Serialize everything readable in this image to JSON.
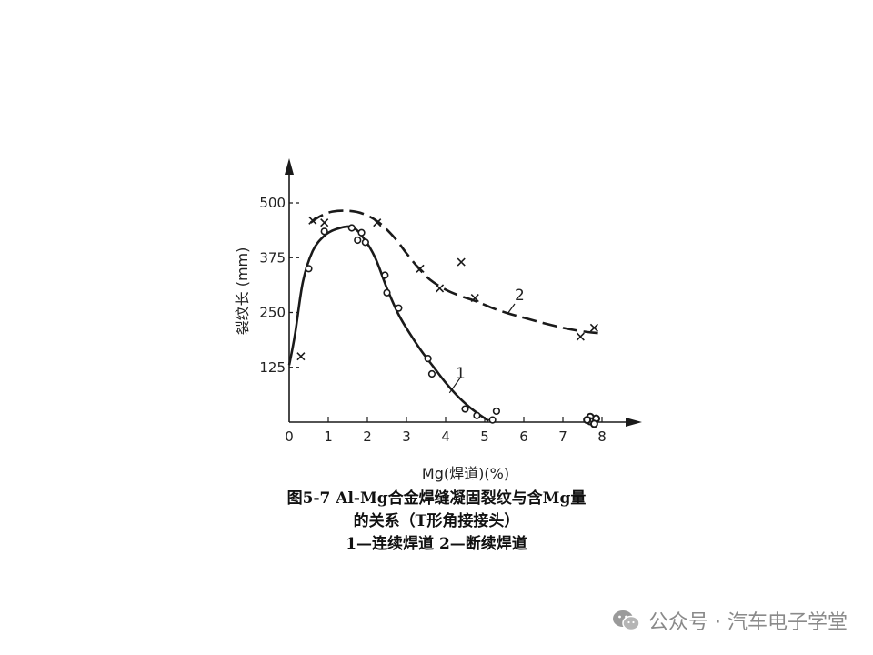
{
  "chart_data": {
    "type": "scatter",
    "xlabel": "Mg(焊道)(%)",
    "ylabel": "裂纹长 (mm)",
    "xlim": [
      0,
      8.5
    ],
    "ylim": [
      0,
      500
    ],
    "x_ticks": [
      0,
      1,
      2,
      3,
      4,
      5,
      6,
      7,
      8
    ],
    "y_ticks": [
      125,
      250,
      375,
      500
    ],
    "grid": false,
    "series": [
      {
        "name": "1",
        "marker": "circle",
        "line_style": "solid",
        "points": [
          [
            0.5,
            350
          ],
          [
            0.9,
            435
          ],
          [
            1.6,
            443
          ],
          [
            1.75,
            415
          ],
          [
            1.85,
            432
          ],
          [
            1.95,
            410
          ],
          [
            2.45,
            335
          ],
          [
            2.5,
            295
          ],
          [
            2.8,
            260
          ],
          [
            3.55,
            145
          ],
          [
            3.65,
            110
          ],
          [
            4.5,
            30
          ],
          [
            4.8,
            15
          ],
          [
            5.2,
            5
          ],
          [
            5.3,
            25
          ]
        ],
        "curve": [
          [
            0,
            130
          ],
          [
            0.15,
            200
          ],
          [
            0.35,
            320
          ],
          [
            0.6,
            390
          ],
          [
            0.9,
            425
          ],
          [
            1.2,
            440
          ],
          [
            1.6,
            445
          ],
          [
            1.9,
            420
          ],
          [
            2.2,
            375
          ],
          [
            2.5,
            305
          ],
          [
            2.8,
            245
          ],
          [
            3.1,
            200
          ],
          [
            3.4,
            160
          ],
          [
            3.7,
            125
          ],
          [
            4.0,
            90
          ],
          [
            4.3,
            60
          ],
          [
            4.6,
            35
          ],
          [
            4.9,
            15
          ],
          [
            5.1,
            3
          ]
        ]
      },
      {
        "name": "2",
        "marker": "cross",
        "line_style": "dashed",
        "points": [
          [
            0.3,
            150
          ],
          [
            0.6,
            460
          ],
          [
            0.9,
            455
          ],
          [
            2.25,
            455
          ],
          [
            3.35,
            350
          ],
          [
            4.4,
            365
          ],
          [
            3.85,
            305
          ],
          [
            4.75,
            283
          ],
          [
            7.45,
            195
          ],
          [
            7.8,
            215
          ]
        ],
        "curve": [
          [
            0.55,
            455
          ],
          [
            0.8,
            470
          ],
          [
            1.1,
            480
          ],
          [
            1.5,
            482
          ],
          [
            1.9,
            475
          ],
          [
            2.3,
            455
          ],
          [
            2.7,
            420
          ],
          [
            3.0,
            385
          ],
          [
            3.3,
            352
          ],
          [
            3.6,
            325
          ],
          [
            4.0,
            302
          ],
          [
            4.4,
            287
          ],
          [
            4.8,
            275
          ],
          [
            5.2,
            260
          ],
          [
            5.6,
            248
          ],
          [
            6.0,
            238
          ],
          [
            6.5,
            226
          ],
          [
            7.0,
            215
          ],
          [
            7.5,
            207
          ],
          [
            7.9,
            203
          ]
        ]
      }
    ],
    "cluster_at_8": [
      [
        7.7,
        12
      ],
      [
        7.85,
        8
      ],
      [
        7.7,
        2
      ],
      [
        7.8,
        -4
      ],
      [
        7.62,
        5
      ]
    ]
  },
  "caption": {
    "line1": "图5-7  Al-Mg合金焊缝凝固裂纹与含Mg量",
    "line2": "的关系（T形角接接头）",
    "line3": "1—连续焊道  2—断续焊道"
  },
  "watermark": {
    "text": "公众号 · 汽车电子学堂",
    "icon": "wechat-icon",
    "color": "#8a8a8a"
  }
}
